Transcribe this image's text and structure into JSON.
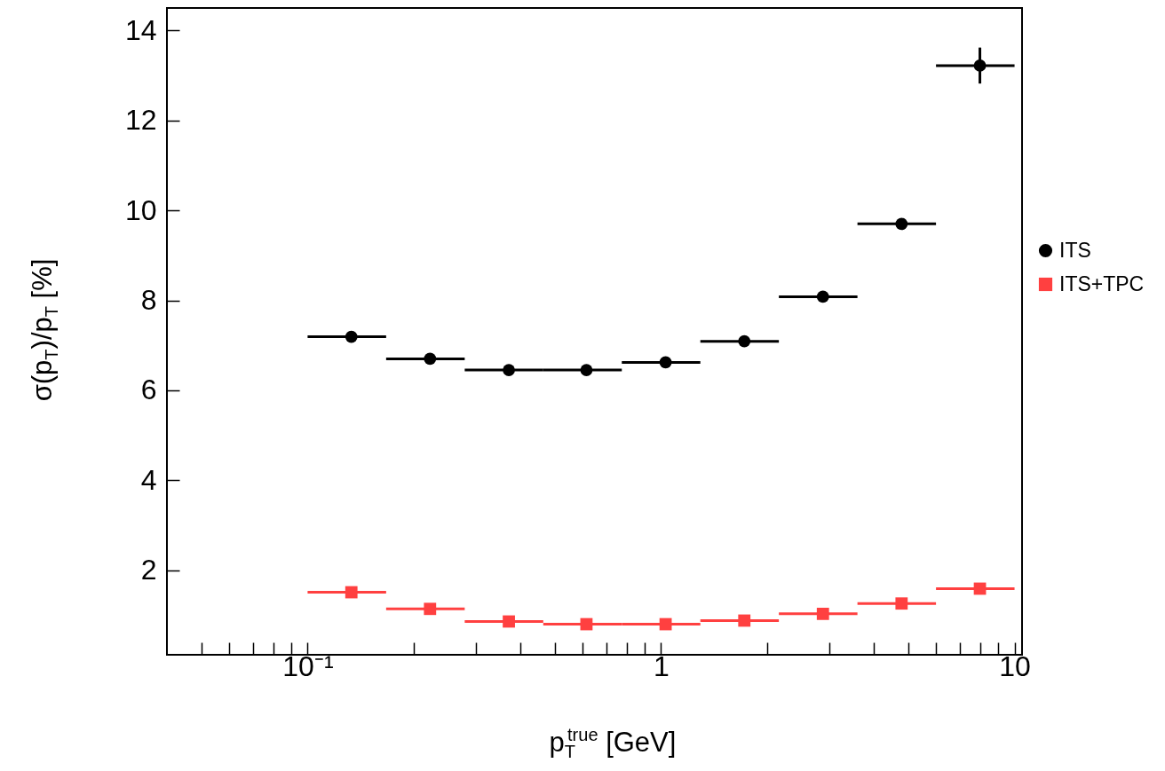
{
  "chart_data": {
    "type": "scatter",
    "xlabel": "p$_{T}$$^{true}$ [GeV]",
    "ylabel": "σ(p$_{T}$)/p$_{T}$ [%]",
    "log": "x",
    "legend": "right",
    "grid": false,
    "xlim": [
      0.04,
      10.5
    ],
    "ylim": [
      0.12,
      14.5
    ],
    "xticks": [
      {
        "value": 0.05,
        "label": null
      },
      {
        "value": 0.06,
        "label": null
      },
      {
        "value": 0.07,
        "label": null
      },
      {
        "value": 0.08,
        "label": null
      },
      {
        "value": 0.09,
        "label": null
      },
      {
        "value": 0.1,
        "label": "10⁻¹"
      },
      {
        "value": 0.2,
        "label": null
      },
      {
        "value": 0.3,
        "label": null
      },
      {
        "value": 0.4,
        "label": null
      },
      {
        "value": 0.5,
        "label": null
      },
      {
        "value": 0.6,
        "label": null
      },
      {
        "value": 0.7,
        "label": null
      },
      {
        "value": 0.8,
        "label": null
      },
      {
        "value": 0.9,
        "label": null
      },
      1,
      {
        "value": 2,
        "label": null
      },
      {
        "value": 3,
        "label": null
      },
      {
        "value": 4,
        "label": null
      },
      {
        "value": 5,
        "label": null
      },
      {
        "value": 6,
        "label": null
      },
      {
        "value": 7,
        "label": null
      },
      {
        "value": 8,
        "label": null
      },
      {
        "value": 9,
        "label": null
      },
      10
    ],
    "yticks": [
      2,
      4,
      6,
      8,
      10,
      12,
      14
    ],
    "series": [
      {
        "name": "ITS",
        "color": "#000000",
        "marker": "circle",
        "x": [
          0.133,
          0.222,
          0.371,
          0.615,
          1.03,
          1.72,
          2.87,
          4.79,
          7.98
        ],
        "values": [
          7.19,
          6.7,
          6.45,
          6.45,
          6.62,
          7.09,
          8.08,
          9.7,
          13.22
        ],
        "errors": [
          null,
          null,
          null,
          null,
          null,
          null,
          null,
          null,
          0.4
        ],
        "xerrors": [
          [
            0.1,
            0.1668
          ],
          [
            0.1668,
            0.2783
          ],
          [
            0.2783,
            0.4642
          ],
          [
            0.4642,
            0.7743
          ],
          [
            0.7743,
            1.2915
          ],
          [
            1.2915,
            2.154
          ],
          [
            2.154,
            3.594
          ],
          [
            3.594,
            5.995
          ],
          [
            5.995,
            10
          ]
        ]
      },
      {
        "name": "ITS+TPC",
        "color": "#ff4040",
        "marker": "square",
        "x": [
          0.133,
          0.222,
          0.371,
          0.615,
          1.03,
          1.72,
          2.87,
          4.79,
          7.98
        ],
        "values": [
          1.51,
          1.14,
          0.86,
          0.8,
          0.8,
          0.88,
          1.03,
          1.26,
          1.59
        ],
        "xerrors": [
          [
            0.1,
            0.1668
          ],
          [
            0.1668,
            0.2783
          ],
          [
            0.2783,
            0.4642
          ],
          [
            0.4642,
            0.7743
          ],
          [
            0.7743,
            1.2915
          ],
          [
            1.2915,
            2.154
          ],
          [
            2.154,
            3.594
          ],
          [
            3.594,
            5.995
          ],
          [
            5.995,
            10
          ]
        ]
      }
    ]
  }
}
